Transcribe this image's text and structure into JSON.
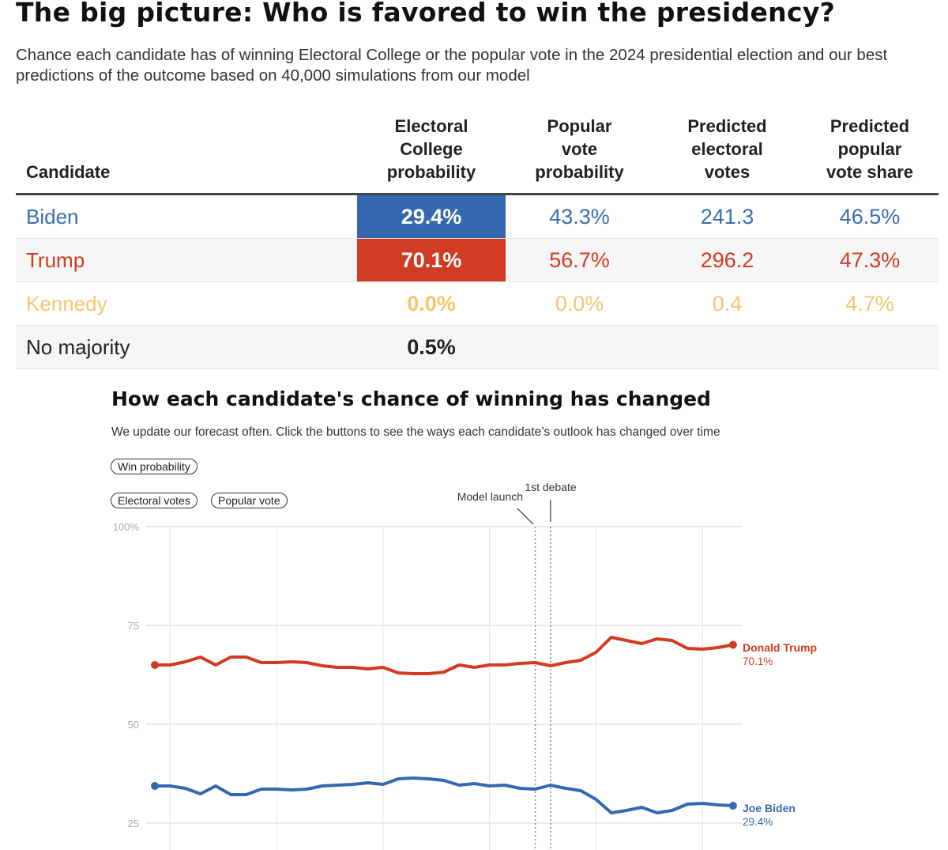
{
  "header": {
    "title": "The big picture: Who is favored to win the presidency?",
    "subtitle": "Chance each candidate has of winning Electoral College or the popular vote in the 2024 presidential election and our best predictions of the outcome based on 40,000 simulations from our model"
  },
  "table": {
    "columns": [
      "Candidate",
      "Electoral College probability",
      "Popular vote probability",
      "Predicted electoral votes",
      "Predicted popular vote share"
    ],
    "rows": [
      {
        "name": "Biden",
        "ec_prob": "29.4%",
        "pv_prob": "43.3%",
        "ev": "241.3",
        "pv_share": "46.5%"
      },
      {
        "name": "Trump",
        "ec_prob": "70.1%",
        "pv_prob": "56.7%",
        "ev": "296.2",
        "pv_share": "47.3%"
      },
      {
        "name": "Kennedy",
        "ec_prob": "0.0%",
        "pv_prob": "0.0%",
        "ev": "0.4",
        "pv_share": "4.7%"
      },
      {
        "name": "No majority",
        "ec_prob": "0.5%"
      }
    ]
  },
  "colors": {
    "biden": "#3568ae",
    "trump": "#d13b22",
    "kennedy": "#f9c46e"
  },
  "chart_section": {
    "title": "How each candidate's chance of winning has changed",
    "subtitle": "We update our forecast often. Click the buttons to see the ways each candidate’s outlook has changed over time",
    "buttons": [
      "Win probability",
      "Electoral votes",
      "Popular vote"
    ]
  },
  "chart_data": {
    "type": "line",
    "title": "How each candidate's chance of winning has changed",
    "xlabel": "",
    "ylabel": "Win probability",
    "ylim": [
      20,
      100
    ],
    "yticks": [
      "100%",
      "75",
      "50",
      "25"
    ],
    "ytick_values": [
      100,
      75,
      50,
      25
    ],
    "grid": true,
    "annotations": [
      {
        "label": "Model launch",
        "x_index": 25
      },
      {
        "label": "1st debate",
        "x_index": 26
      }
    ],
    "series": [
      {
        "name": "Donald Trump",
        "end_label": "70.1%",
        "color": "#d13b22",
        "values": [
          65.0,
          65.0,
          65.8,
          67.0,
          65.0,
          67.0,
          67.0,
          65.6,
          65.6,
          65.8,
          65.6,
          64.8,
          64.4,
          64.4,
          64.0,
          64.4,
          63.0,
          62.8,
          62.8,
          63.2,
          65.0,
          64.4,
          65.0,
          65.0,
          65.4,
          65.6,
          64.8,
          65.6,
          66.2,
          68.2,
          72.0,
          71.2,
          70.4,
          71.6,
          71.2,
          69.2,
          69.0,
          69.4,
          70.1
        ]
      },
      {
        "name": "Joe Biden",
        "end_label": "29.4%",
        "color": "#3568ae",
        "values": [
          34.4,
          34.4,
          33.8,
          32.4,
          34.4,
          32.2,
          32.2,
          33.6,
          33.6,
          33.4,
          33.6,
          34.4,
          34.6,
          34.8,
          35.2,
          34.8,
          36.2,
          36.4,
          36.2,
          35.8,
          34.6,
          35.0,
          34.4,
          34.6,
          33.8,
          33.6,
          34.6,
          33.8,
          33.2,
          31.0,
          27.6,
          28.2,
          29.0,
          27.6,
          28.2,
          29.8,
          30.0,
          29.6,
          29.4
        ]
      }
    ]
  }
}
